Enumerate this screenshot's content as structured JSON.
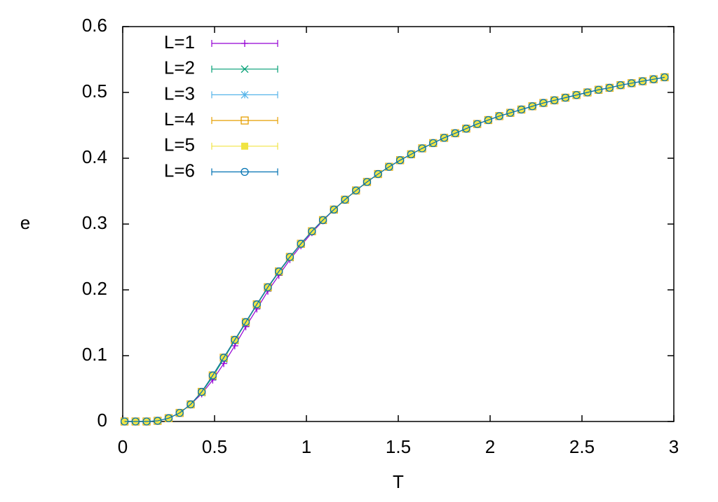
{
  "chart_data": {
    "type": "line",
    "xlabel": "T",
    "ylabel": "e",
    "x": [
      0.01,
      0.07,
      0.13,
      0.19,
      0.25,
      0.31,
      0.37,
      0.43,
      0.49,
      0.55,
      0.61,
      0.67,
      0.73,
      0.79,
      0.85,
      0.91,
      0.97,
      1.03,
      1.09,
      1.15,
      1.21,
      1.27,
      1.33,
      1.39,
      1.45,
      1.51,
      1.57,
      1.63,
      1.69,
      1.75,
      1.81,
      1.87,
      1.93,
      1.99,
      2.05,
      2.11,
      2.17,
      2.23,
      2.29,
      2.35,
      2.41,
      2.47,
      2.53,
      2.59,
      2.65,
      2.71,
      2.77,
      2.83,
      2.89,
      2.95
    ],
    "series": [
      {
        "name": "L=1",
        "color": "#9400d3",
        "marker": "plus",
        "values": [
          0,
          0,
          0,
          0.001,
          0.005,
          0.013,
          0.026,
          0.042,
          0.063,
          0.088,
          0.115,
          0.144,
          0.171,
          0.198,
          0.222,
          0.246,
          0.267,
          0.287,
          0.305,
          0.322,
          0.337,
          0.351,
          0.364,
          0.376,
          0.387,
          0.397,
          0.406,
          0.415,
          0.423,
          0.431,
          0.438,
          0.445,
          0.452,
          0.458,
          0.464,
          0.469,
          0.474,
          0.479,
          0.484,
          0.488,
          0.492,
          0.496,
          0.5,
          0.504,
          0.507,
          0.511,
          0.514,
          0.517,
          0.52,
          0.523
        ]
      },
      {
        "name": "L=2",
        "color": "#009e73",
        "marker": "cross",
        "values": [
          0,
          0,
          0,
          0.001,
          0.005,
          0.013,
          0.026,
          0.044,
          0.068,
          0.095,
          0.123,
          0.15,
          0.177,
          0.203,
          0.227,
          0.249,
          0.27,
          0.289,
          0.306,
          0.322,
          0.337,
          0.351,
          0.364,
          0.376,
          0.387,
          0.397,
          0.406,
          0.415,
          0.423,
          0.431,
          0.438,
          0.445,
          0.452,
          0.458,
          0.464,
          0.469,
          0.474,
          0.479,
          0.484,
          0.488,
          0.492,
          0.496,
          0.5,
          0.504,
          0.507,
          0.511,
          0.514,
          0.517,
          0.52,
          0.523
        ]
      },
      {
        "name": "L=3",
        "color": "#56b4e9",
        "marker": "star",
        "values": [
          0,
          0,
          0,
          0.001,
          0.005,
          0.013,
          0.026,
          0.045,
          0.07,
          0.097,
          0.124,
          0.151,
          0.178,
          0.204,
          0.228,
          0.25,
          0.27,
          0.289,
          0.306,
          0.322,
          0.337,
          0.351,
          0.364,
          0.376,
          0.387,
          0.397,
          0.406,
          0.415,
          0.423,
          0.431,
          0.438,
          0.445,
          0.452,
          0.458,
          0.464,
          0.469,
          0.474,
          0.479,
          0.484,
          0.488,
          0.492,
          0.496,
          0.5,
          0.504,
          0.507,
          0.511,
          0.514,
          0.517,
          0.52,
          0.523
        ]
      },
      {
        "name": "L=4",
        "color": "#e69f00",
        "marker": "square",
        "values": [
          0,
          0,
          0,
          0.001,
          0.005,
          0.013,
          0.026,
          0.045,
          0.07,
          0.097,
          0.124,
          0.151,
          0.178,
          0.204,
          0.228,
          0.25,
          0.27,
          0.289,
          0.306,
          0.322,
          0.337,
          0.351,
          0.364,
          0.376,
          0.387,
          0.397,
          0.406,
          0.415,
          0.423,
          0.431,
          0.438,
          0.445,
          0.452,
          0.458,
          0.464,
          0.469,
          0.474,
          0.479,
          0.484,
          0.488,
          0.492,
          0.496,
          0.5,
          0.504,
          0.507,
          0.511,
          0.514,
          0.517,
          0.52,
          0.523
        ]
      },
      {
        "name": "L=5",
        "color": "#f0e442",
        "marker": "filled-square",
        "values": [
          0,
          0,
          0,
          0.001,
          0.005,
          0.013,
          0.026,
          0.045,
          0.07,
          0.097,
          0.124,
          0.151,
          0.178,
          0.204,
          0.228,
          0.25,
          0.27,
          0.289,
          0.306,
          0.322,
          0.337,
          0.351,
          0.364,
          0.376,
          0.387,
          0.397,
          0.406,
          0.415,
          0.423,
          0.431,
          0.438,
          0.445,
          0.452,
          0.458,
          0.464,
          0.469,
          0.474,
          0.479,
          0.484,
          0.488,
          0.492,
          0.496,
          0.5,
          0.504,
          0.507,
          0.511,
          0.514,
          0.517,
          0.52,
          0.523
        ]
      },
      {
        "name": "L=6",
        "color": "#0072b2",
        "marker": "circle",
        "values": [
          0,
          0,
          0,
          0.001,
          0.005,
          0.013,
          0.026,
          0.045,
          0.07,
          0.097,
          0.124,
          0.151,
          0.178,
          0.204,
          0.228,
          0.25,
          0.27,
          0.289,
          0.306,
          0.322,
          0.337,
          0.351,
          0.364,
          0.376,
          0.387,
          0.397,
          0.406,
          0.415,
          0.423,
          0.431,
          0.438,
          0.445,
          0.452,
          0.458,
          0.464,
          0.469,
          0.474,
          0.479,
          0.484,
          0.488,
          0.492,
          0.496,
          0.5,
          0.504,
          0.507,
          0.511,
          0.514,
          0.517,
          0.52,
          0.523
        ]
      }
    ],
    "xlim": [
      0,
      3
    ],
    "xticks": [
      0,
      0.5,
      1,
      1.5,
      2,
      2.5,
      3
    ],
    "ylim": [
      0,
      0.6
    ],
    "yticks": [
      0,
      0.1,
      0.2,
      0.3,
      0.4,
      0.5,
      0.6
    ],
    "legend": "top-left"
  }
}
